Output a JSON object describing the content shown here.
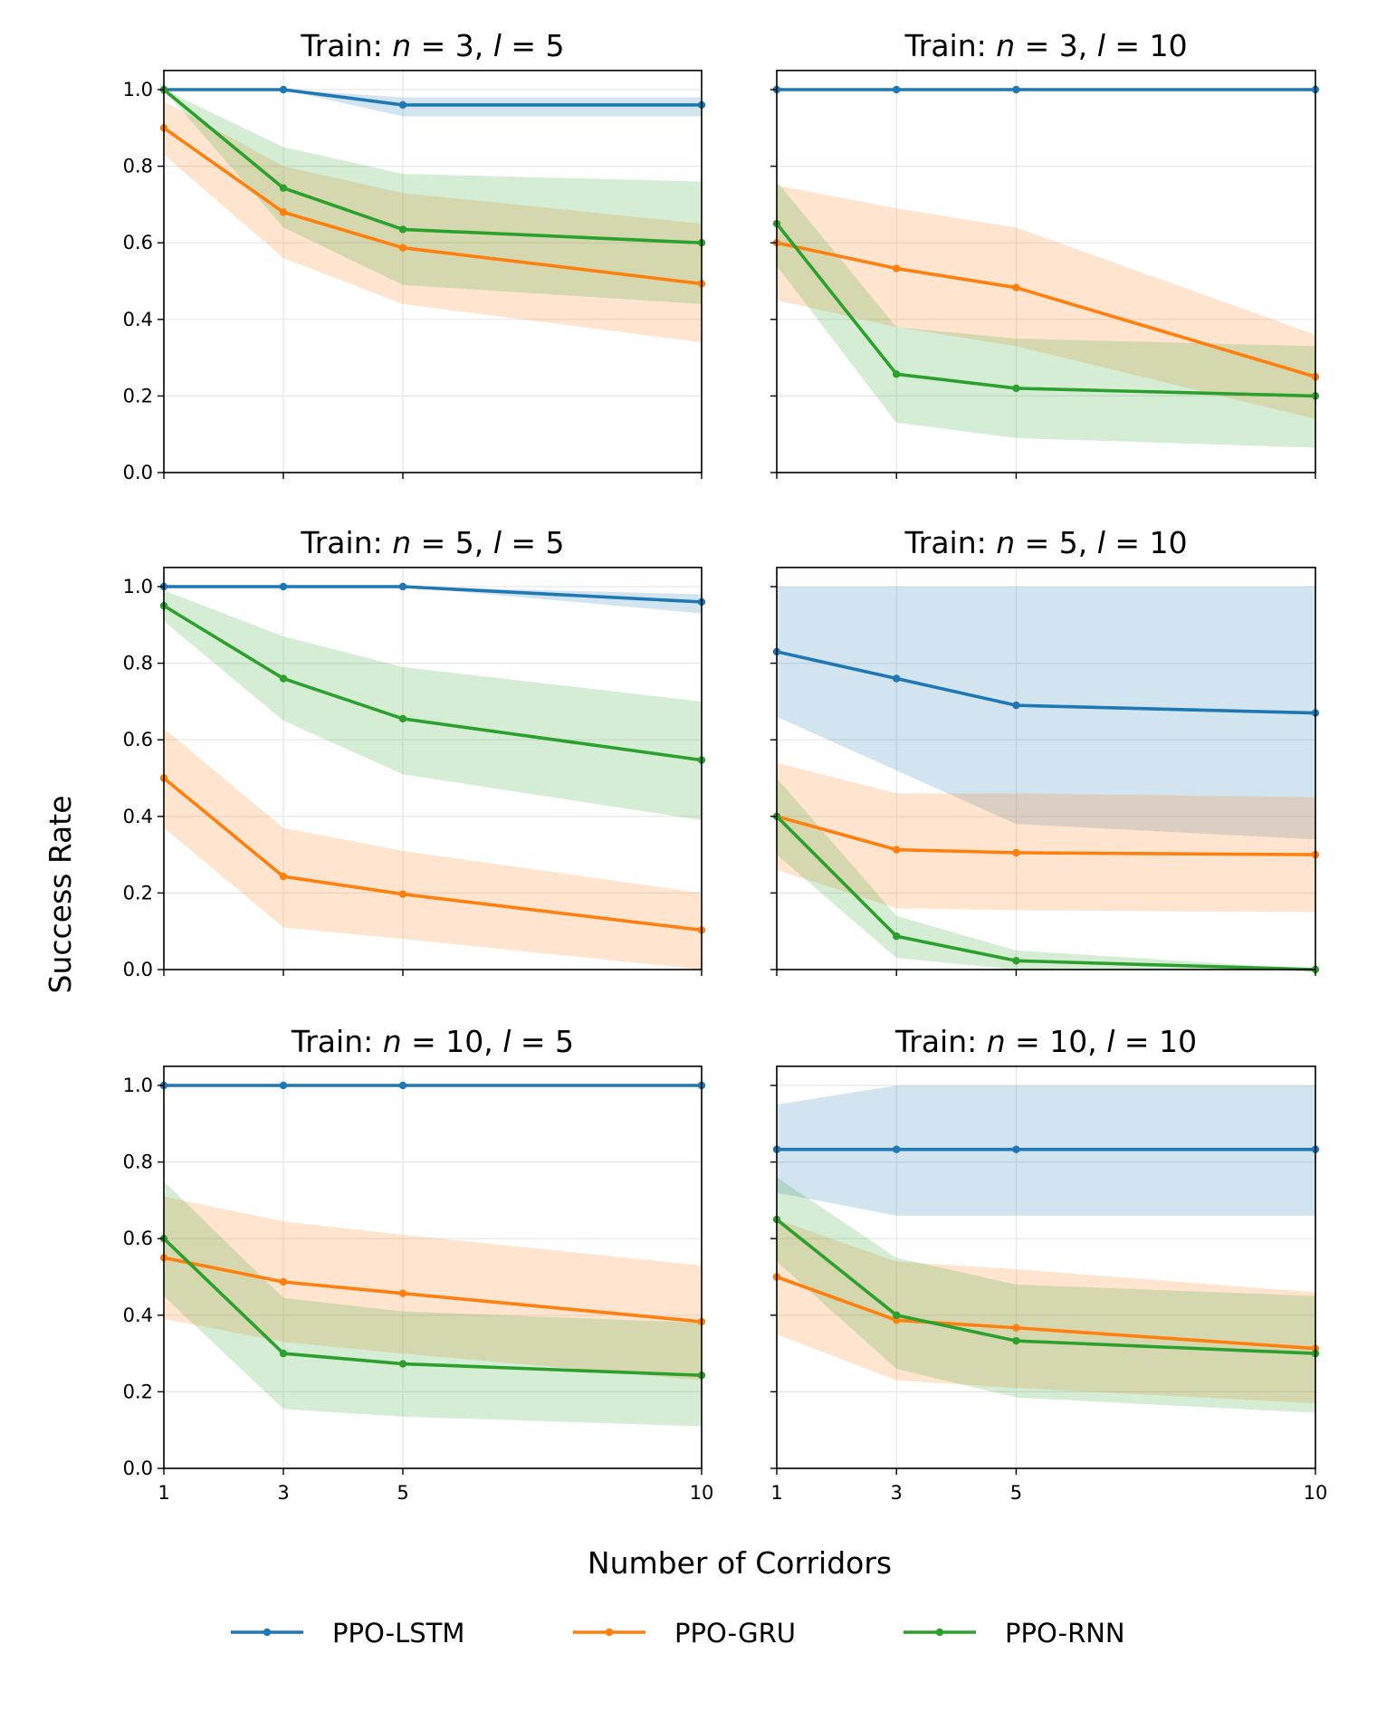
{
  "chart_data": {
    "type": "line",
    "layout": "3x2 grid, shared x and y axes",
    "xlabel": "Number of Corridors",
    "ylabel": "Success Rate",
    "x": [
      1,
      3,
      5,
      10
    ],
    "xticks": [
      "1",
      "3",
      "5",
      "10"
    ],
    "yticks": [
      "0.0",
      "0.2",
      "0.4",
      "0.6",
      "0.8",
      "1.0"
    ],
    "xlim": [
      1,
      10
    ],
    "ylim": [
      0,
      1.05
    ],
    "grid": true,
    "legend": {
      "placement": "bottom-center",
      "entries": [
        "PPO-LSTM",
        "PPO-GRU",
        "PPO-RNN"
      ]
    },
    "colors": {
      "PPO-LSTM": "#1f77b4",
      "PPO-GRU": "#ff7f0e",
      "PPO-RNN": "#2ca02c"
    },
    "panels": [
      {
        "title": {
          "prefix": "Train:",
          "n": "3",
          "l": "5"
        },
        "series": [
          {
            "name": "PPO-LSTM",
            "values": [
              1.0,
              1.0,
              0.96,
              0.96
            ],
            "lower": [
              1.0,
              1.0,
              0.93,
              0.93
            ],
            "upper": [
              1.0,
              1.0,
              0.98,
              0.98
            ]
          },
          {
            "name": "PPO-GRU",
            "values": [
              0.9,
              0.68,
              0.587,
              0.493
            ],
            "lower": [
              0.83,
              0.56,
              0.44,
              0.34
            ],
            "upper": [
              0.97,
              0.8,
              0.73,
              0.65
            ]
          },
          {
            "name": "PPO-RNN",
            "values": [
              1.0,
              0.743,
              0.635,
              0.6
            ],
            "lower": [
              1.0,
              0.64,
              0.49,
              0.44
            ],
            "upper": [
              1.0,
              0.85,
              0.78,
              0.76
            ]
          }
        ]
      },
      {
        "title": {
          "prefix": "Train:",
          "n": "3",
          "l": "10"
        },
        "series": [
          {
            "name": "PPO-LSTM",
            "values": [
              1.0,
              1.0,
              1.0,
              1.0
            ],
            "lower": [
              1.0,
              1.0,
              1.0,
              1.0
            ],
            "upper": [
              1.0,
              1.0,
              1.0,
              1.0
            ]
          },
          {
            "name": "PPO-GRU",
            "values": [
              0.6,
              0.533,
              0.483,
              0.25
            ],
            "lower": [
              0.45,
              0.38,
              0.33,
              0.14
            ],
            "upper": [
              0.75,
              0.69,
              0.64,
              0.36
            ]
          },
          {
            "name": "PPO-RNN",
            "values": [
              0.65,
              0.257,
              0.22,
              0.2
            ],
            "lower": [
              0.54,
              0.13,
              0.09,
              0.065
            ],
            "upper": [
              0.76,
              0.38,
              0.35,
              0.33
            ]
          }
        ]
      },
      {
        "title": {
          "prefix": "Train:",
          "n": "5",
          "l": "5"
        },
        "series": [
          {
            "name": "PPO-LSTM",
            "values": [
              1.0,
              1.0,
              1.0,
              0.96
            ],
            "lower": [
              1.0,
              1.0,
              1.0,
              0.93
            ],
            "upper": [
              1.0,
              1.0,
              1.0,
              0.98
            ]
          },
          {
            "name": "PPO-GRU",
            "values": [
              0.5,
              0.243,
              0.197,
              0.103
            ],
            "lower": [
              0.37,
              0.11,
              0.08,
              0.0
            ],
            "upper": [
              0.63,
              0.37,
              0.31,
              0.2
            ]
          },
          {
            "name": "PPO-RNN",
            "values": [
              0.95,
              0.76,
              0.655,
              0.547
            ],
            "lower": [
              0.91,
              0.65,
              0.51,
              0.39
            ],
            "upper": [
              0.99,
              0.87,
              0.79,
              0.7
            ]
          }
        ]
      },
      {
        "title": {
          "prefix": "Train:",
          "n": "5",
          "l": "10"
        },
        "series": [
          {
            "name": "PPO-LSTM",
            "values": [
              0.83,
              0.76,
              0.69,
              0.67
            ],
            "lower": [
              0.66,
              0.52,
              0.38,
              0.34
            ],
            "upper": [
              1.0,
              1.0,
              1.0,
              1.0
            ]
          },
          {
            "name": "PPO-GRU",
            "values": [
              0.4,
              0.313,
              0.305,
              0.3
            ],
            "lower": [
              0.26,
              0.16,
              0.155,
              0.15
            ],
            "upper": [
              0.54,
              0.46,
              0.46,
              0.45
            ]
          },
          {
            "name": "PPO-RNN",
            "values": [
              0.4,
              0.087,
              0.023,
              0.0
            ],
            "lower": [
              0.3,
              0.03,
              0.0,
              0.0
            ],
            "upper": [
              0.5,
              0.14,
              0.05,
              0.0
            ]
          }
        ]
      },
      {
        "title": {
          "prefix": "Train:",
          "n": "10",
          "l": "5"
        },
        "series": [
          {
            "name": "PPO-LSTM",
            "values": [
              1.0,
              1.0,
              1.0,
              1.0
            ],
            "lower": [
              1.0,
              1.0,
              1.0,
              1.0
            ],
            "upper": [
              1.0,
              1.0,
              1.0,
              1.0
            ]
          },
          {
            "name": "PPO-GRU",
            "values": [
              0.55,
              0.487,
              0.457,
              0.383
            ],
            "lower": [
              0.39,
              0.33,
              0.3,
              0.23
            ],
            "upper": [
              0.71,
              0.645,
              0.61,
              0.53
            ]
          },
          {
            "name": "PPO-RNN",
            "values": [
              0.6,
              0.3,
              0.273,
              0.243
            ],
            "lower": [
              0.45,
              0.155,
              0.135,
              0.11
            ],
            "upper": [
              0.75,
              0.445,
              0.41,
              0.38
            ]
          }
        ]
      },
      {
        "title": {
          "prefix": "Train:",
          "n": "10",
          "l": "10"
        },
        "series": [
          {
            "name": "PPO-LSTM",
            "values": [
              0.833,
              0.833,
              0.833,
              0.833
            ],
            "lower": [
              0.72,
              0.66,
              0.66,
              0.66
            ],
            "upper": [
              0.95,
              1.0,
              1.0,
              1.0
            ]
          },
          {
            "name": "PPO-GRU",
            "values": [
              0.5,
              0.387,
              0.367,
              0.313
            ],
            "lower": [
              0.35,
              0.23,
              0.21,
              0.17
            ],
            "upper": [
              0.65,
              0.54,
              0.52,
              0.46
            ]
          },
          {
            "name": "PPO-RNN",
            "values": [
              0.65,
              0.4,
              0.333,
              0.3
            ],
            "lower": [
              0.54,
              0.26,
              0.185,
              0.145
            ],
            "upper": [
              0.76,
              0.55,
              0.48,
              0.45
            ]
          }
        ]
      }
    ]
  }
}
